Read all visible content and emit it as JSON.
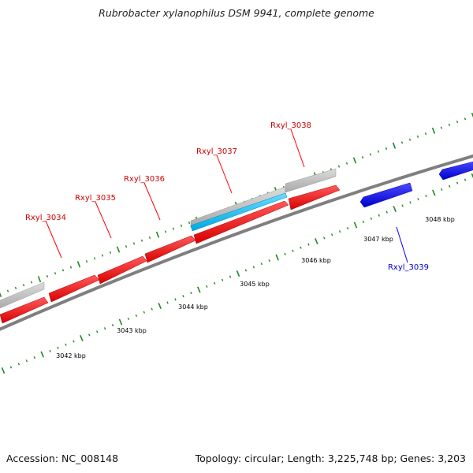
{
  "title": "Rubrobacter xylanophilus DSM 9941, complete genome",
  "footer": {
    "accession": "Accession: NC_008148",
    "stats": "Topology: circular; Length: 3,225,748 bp; Genes: 3,203"
  },
  "colors": {
    "forward_gene": "#ff0000",
    "reverse_gene": "#0000ff",
    "rna_feature": "#00aaee",
    "gene_track": "#bbbbbb",
    "backbone": "#8a8a8a",
    "tick": "#228822",
    "forward_label": "#cc0000",
    "reverse_label": "#0000cc"
  },
  "scale_labels": [
    "3042 kbp",
    "3043 kbp",
    "3044 kbp",
    "3045 kbp",
    "3046 kbp",
    "3047 kbp",
    "3048 kbp"
  ],
  "gene_labels": {
    "forward": [
      "Rxyl_3034",
      "Rxyl_3035",
      "Rxyl_3036",
      "Rxyl_3037",
      "Rxyl_3038"
    ],
    "reverse": [
      "Rxyl_3039"
    ]
  }
}
